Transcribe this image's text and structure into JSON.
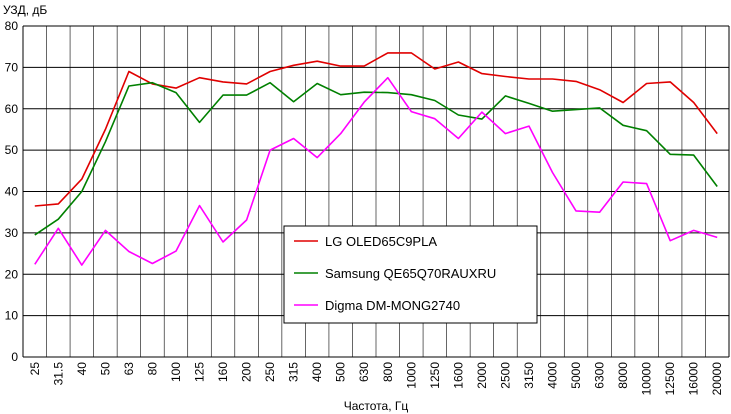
{
  "chart_data": {
    "type": "line",
    "ylabel": "УЗД, дБ",
    "xlabel": "Частота, Гц",
    "ylim": [
      0,
      80
    ],
    "yticks": [
      0,
      10,
      20,
      30,
      40,
      50,
      60,
      70,
      80
    ],
    "grid": true,
    "legend_position": "bottom-center",
    "categories": [
      "25",
      "31.5",
      "40",
      "50",
      "63",
      "80",
      "100",
      "125",
      "160",
      "200",
      "250",
      "315",
      "400",
      "500",
      "630",
      "800",
      "1000",
      "1250",
      "1600",
      "2000",
      "2500",
      "3150",
      "4000",
      "5000",
      "6300",
      "8000",
      "10000",
      "12500",
      "16000",
      "20000"
    ],
    "series": [
      {
        "name": "LG OLED65C9PLA",
        "color": "#e00000",
        "values": [
          36.5,
          37,
          43,
          55,
          69,
          66,
          65,
          67.5,
          66.5,
          66,
          69,
          70.5,
          71.5,
          70.3,
          70.3,
          73.5,
          73.5,
          69.6,
          71.3,
          68.5,
          67.8,
          67.2,
          67.2,
          66.6,
          64.6,
          61.5,
          66.1,
          66.5,
          61.5,
          54
        ]
      },
      {
        "name": "Samsung QE65Q70RAUXRU",
        "color": "#008000",
        "values": [
          29.5,
          33.3,
          40,
          52,
          65.5,
          66.3,
          63.9,
          56.7,
          63.3,
          63.3,
          66.3,
          61.7,
          66.1,
          63.4,
          64,
          63.9,
          63.4,
          62,
          58.5,
          57.5,
          63.1,
          61.3,
          59.4,
          59.8,
          60.2,
          56,
          54.7,
          49,
          48.8,
          41.2
        ]
      },
      {
        "name": "Digma DM-MONG2740",
        "color": "#ff00ff",
        "values": [
          22.4,
          31.1,
          22.2,
          30.6,
          25.5,
          22.6,
          25.6,
          36.6,
          27.8,
          33.1,
          50,
          52.8,
          48.2,
          54,
          61.6,
          67.5,
          59.3,
          57.6,
          52.8,
          59.2,
          54,
          55.8,
          44.6,
          35.3,
          35,
          42.3,
          41.9,
          28.1,
          30.6,
          28.9
        ]
      }
    ]
  }
}
